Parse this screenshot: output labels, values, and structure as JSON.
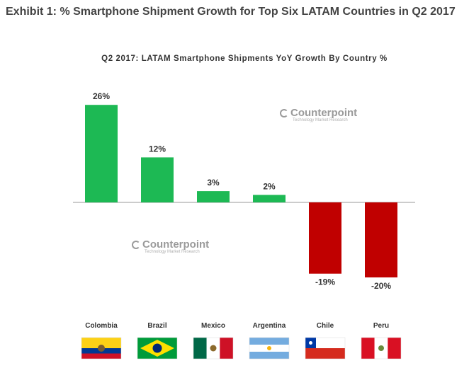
{
  "page": {
    "exhibit_title": "Exhibit 1: % Smartphone Shipment Growth for Top Six LATAM Countries in Q2 2017"
  },
  "watermark": {
    "brand": "Counterpoint",
    "tagline": "Technology Market Research"
  },
  "chart_data": {
    "type": "bar",
    "title": "Q2 2017: LATAM Smartphone Shipments YoY Growth By Country %",
    "categories": [
      "Colombia",
      "Brazil",
      "Mexico",
      "Argentina",
      "Chile",
      "Peru"
    ],
    "values": [
      26,
      12,
      3,
      2,
      -19,
      -20
    ],
    "value_labels": [
      "26%",
      "12%",
      "3%",
      "2%",
      "-19%",
      "-20%"
    ],
    "unit": "%",
    "ylim": [
      -20,
      26
    ],
    "grid": false,
    "legend": "none",
    "colors": {
      "positive": "#1db954",
      "negative": "#c00000",
      "axis": "#999999",
      "text": "#333333"
    },
    "flags": [
      "colombia-flag",
      "brazil-flag",
      "mexico-flag",
      "argentina-flag",
      "chile-flag",
      "peru-flag"
    ]
  }
}
